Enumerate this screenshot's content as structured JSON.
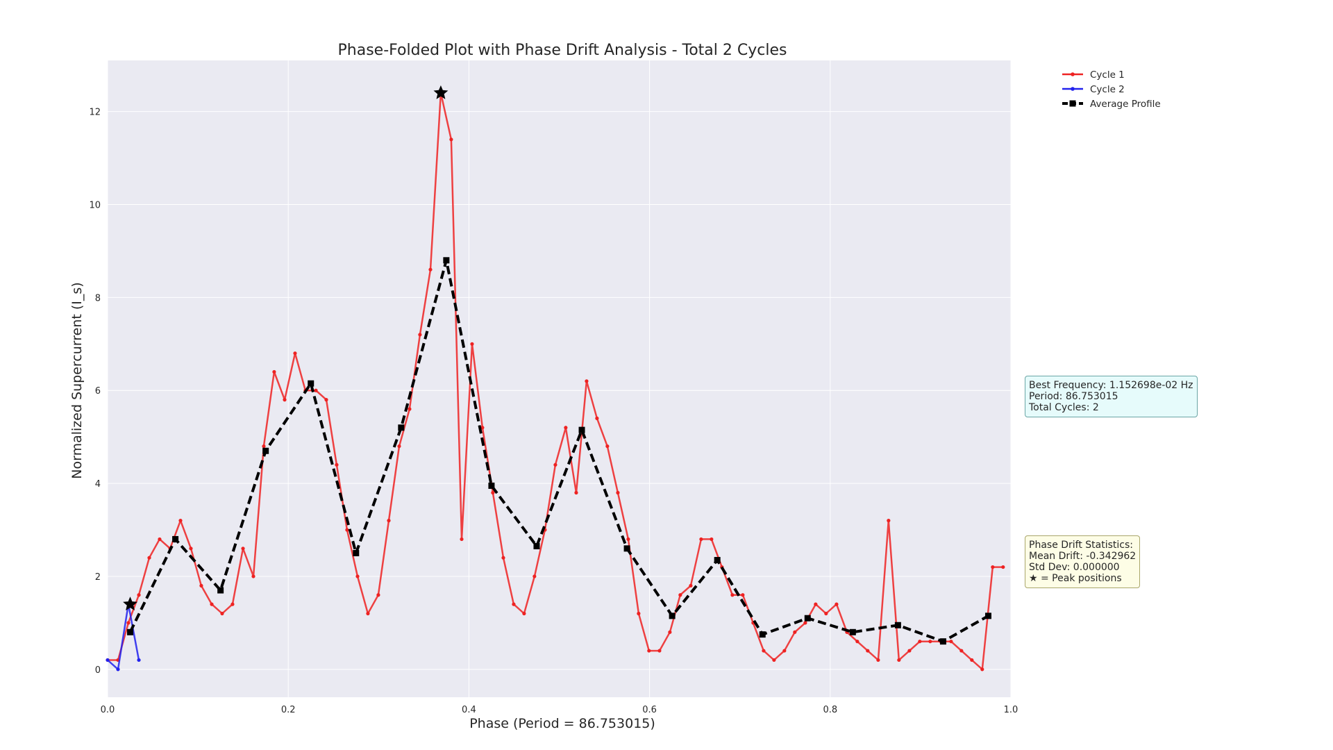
{
  "chart_data": {
    "type": "line",
    "title": "Phase-Folded Plot with Phase Drift Analysis - Total 2 Cycles",
    "xlabel": "Phase (Period = 86.753015)",
    "ylabel": "Normalized Supercurrent (I_s)",
    "xlim": [
      0.0,
      1.0
    ],
    "ylim": [
      -0.6,
      13.1
    ],
    "xticks": [
      "0.0",
      "0.2",
      "0.4",
      "0.6",
      "0.8",
      "1.0"
    ],
    "xtick_values": [
      0.0,
      0.2,
      0.4,
      0.6,
      0.8,
      1.0
    ],
    "yticks": [
      "0",
      "2",
      "4",
      "6",
      "8",
      "10",
      "12"
    ],
    "ytick_values": [
      0,
      2,
      4,
      6,
      8,
      10,
      12
    ],
    "grid": true,
    "legend_placement": "outside-top-right",
    "series": [
      {
        "name": "Cycle 1",
        "color": "#ee2222",
        "style": "solid-dot",
        "x": [
          0.0,
          0.0115,
          0.023,
          0.0346,
          0.0461,
          0.0576,
          0.0692,
          0.0807,
          0.0922,
          0.1037,
          0.1153,
          0.1268,
          0.1383,
          0.1499,
          0.1614,
          0.1729,
          0.1844,
          0.196,
          0.2075,
          0.219,
          0.2306,
          0.2421,
          0.2536,
          0.2651,
          0.2767,
          0.2882,
          0.2997,
          0.3113,
          0.3228,
          0.3343,
          0.3458,
          0.3574,
          0.3689,
          0.3804,
          0.392,
          0.4035,
          0.415,
          0.4265,
          0.4381,
          0.4496,
          0.4611,
          0.4726,
          0.4842,
          0.4957,
          0.5072,
          0.5188,
          0.5303,
          0.5418,
          0.5533,
          0.5649,
          0.5764,
          0.5879,
          0.5994,
          0.611,
          0.6225,
          0.634,
          0.6456,
          0.6571,
          0.6686,
          0.6801,
          0.6917,
          0.7032,
          0.7147,
          0.7263,
          0.7378,
          0.7493,
          0.7608,
          0.7724,
          0.7839,
          0.7954,
          0.807,
          0.8185,
          0.83,
          0.8415,
          0.8531,
          0.8646,
          0.8761,
          0.8877,
          0.8992,
          0.9107,
          0.9222,
          0.9338,
          0.9453,
          0.9568,
          0.9683,
          0.9799,
          0.9914
        ],
        "y": [
          0.2,
          0.2,
          1.0,
          1.6,
          2.4,
          2.8,
          2.6,
          3.2,
          2.6,
          1.8,
          1.4,
          1.2,
          1.4,
          2.6,
          2.0,
          4.8,
          6.4,
          5.8,
          6.8,
          6.0,
          6.0,
          5.8,
          4.4,
          3.0,
          2.0,
          1.2,
          1.6,
          3.2,
          4.8,
          5.6,
          7.2,
          8.6,
          12.4,
          11.4,
          2.8,
          7.0,
          5.2,
          3.8,
          2.4,
          1.4,
          1.2,
          2.0,
          3.0,
          4.4,
          5.2,
          3.8,
          6.2,
          5.4,
          4.8,
          3.8,
          2.8,
          1.2,
          0.4,
          0.4,
          0.8,
          1.6,
          1.8,
          2.8,
          2.8,
          2.2,
          1.6,
          1.6,
          1.0,
          0.4,
          0.2,
          0.4,
          0.8,
          1.0,
          1.4,
          1.2,
          1.4,
          0.8,
          0.6,
          0.4,
          0.2,
          3.2,
          0.2,
          0.4,
          0.6,
          0.6,
          0.6,
          0.6,
          0.4,
          0.2,
          0.0,
          2.2,
          2.2
        ]
      },
      {
        "name": "Cycle 2",
        "color": "#2222ee",
        "style": "solid-dot",
        "x": [
          0.0,
          0.0115,
          0.023,
          0.0346
        ],
        "y": [
          0.2,
          0.0,
          1.4,
          0.2
        ]
      },
      {
        "name": "Average Profile",
        "color": "#000000",
        "style": "dashed-square",
        "x": [
          0.025,
          0.075,
          0.125,
          0.175,
          0.225,
          0.275,
          0.325,
          0.375,
          0.425,
          0.475,
          0.525,
          0.575,
          0.625,
          0.675,
          0.725,
          0.775,
          0.825,
          0.875,
          0.925,
          0.975
        ],
        "y": [
          0.8,
          2.8,
          1.7,
          4.7,
          6.15,
          2.5,
          5.2,
          8.8,
          3.95,
          2.65,
          5.15,
          2.6,
          1.15,
          2.35,
          0.75,
          1.1,
          0.8,
          0.95,
          0.6,
          1.15
        ]
      }
    ],
    "peaks": [
      {
        "x": 0.3689,
        "y": 12.4
      },
      {
        "x": 0.025,
        "y": 1.4
      }
    ]
  },
  "info_box": {
    "lines": [
      "Best Frequency: 1.152698e-02 Hz",
      "Period: 86.753015",
      "Total Cycles: 2"
    ]
  },
  "drift_box": {
    "lines": [
      "Phase Drift Statistics:",
      "Mean Drift: -0.342962",
      "Std Dev: 0.000000",
      "★ = Peak positions"
    ]
  },
  "colors": {
    "plot_background": "#eaeaf2",
    "grid": "#ffffff"
  }
}
